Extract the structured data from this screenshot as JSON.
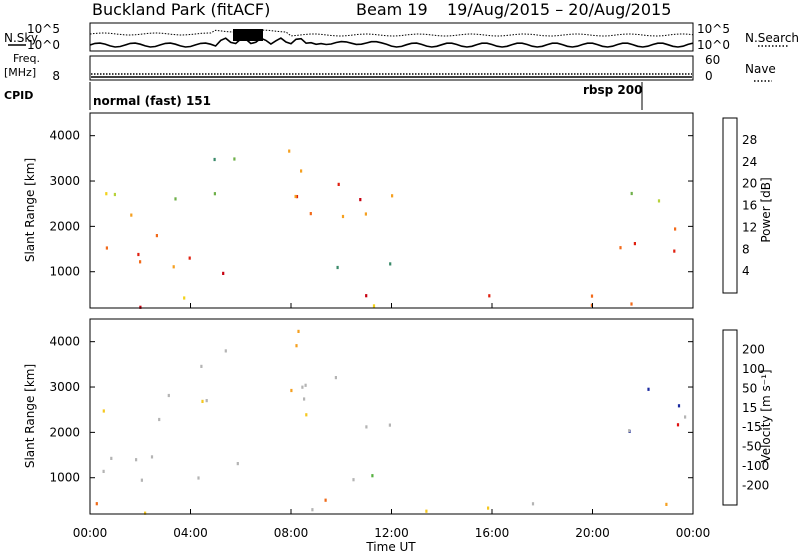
{
  "header": {
    "title": "Buckland Park (fitACF)",
    "beam": "Beam 19",
    "date_range": "19/Aug/2015 – 20/Aug/2015"
  },
  "labels": {
    "n_sky": "N.Sky",
    "n_search": "N.Search",
    "freq": "Freq.",
    "freq_unit": "[MHz]",
    "nave": "Nave",
    "cpid": "CPID",
    "range_ylabel": "Slant Range [km]",
    "time_xlabel": "Time UT",
    "power_label": "Power [dB]",
    "velocity_label": "Velocity [m s⁻¹]"
  },
  "cpid_segments": [
    {
      "label": "normal (fast) 151",
      "start_hr": 0
    },
    {
      "label": "rbsp 200",
      "start_hr": 22
    }
  ],
  "chart_data": [
    {
      "type": "line",
      "title": "N.Sky / N.Search noise",
      "y_left_ticks": [
        "10^5",
        "10^0"
      ],
      "y_right_ticks": [
        "10^5",
        "10^0"
      ],
      "series": [
        {
          "name": "N.Sky",
          "style": "solid"
        },
        {
          "name": "N.Search",
          "style": "dotted"
        }
      ],
      "x": [
        0,
        2,
        4,
        6,
        7,
        8,
        10,
        12,
        16,
        20,
        22,
        24
      ]
    },
    {
      "type": "line",
      "title": "Freq / Nave",
      "y_left_ticks": [
        "8"
      ],
      "y_right_ticks": [
        "60",
        "0"
      ],
      "freq_value": 8
    },
    {
      "type": "heatmap",
      "name": "power",
      "xlabel": "Time UT",
      "ylabel": "Slant Range [km]",
      "xlim": [
        0,
        24
      ],
      "ylim": [
        200,
        4500
      ],
      "x_ticks": [
        "00:00",
        "04:00",
        "08:00",
        "12:00",
        "16:00",
        "20:00",
        "00:00"
      ],
      "y_ticks": [
        1000,
        2000,
        3000,
        4000
      ],
      "colorbar": {
        "label": "Power [dB]",
        "ticks": [
          4,
          8,
          12,
          16,
          20,
          24,
          28
        ],
        "colors": [
          "#0022ee",
          "#2255aa",
          "#3a8a6a",
          "#6fb04a",
          "#b7d23a",
          "#f2d21a",
          "#f5a020",
          "#f26a1a",
          "#e02010",
          "#c80010"
        ]
      }
    },
    {
      "type": "heatmap",
      "name": "velocity",
      "xlabel": "Time UT",
      "ylabel": "Slant Range [km]",
      "xlim": [
        0,
        24
      ],
      "ylim": [
        200,
        4500
      ],
      "x_ticks": [
        "00:00",
        "04:00",
        "08:00",
        "12:00",
        "16:00",
        "20:00",
        "00:00"
      ],
      "y_ticks": [
        1000,
        2000,
        3000,
        4000
      ],
      "colorbar": {
        "label": "Velocity [m s⁻¹]",
        "ticks": [
          200,
          100,
          50,
          15,
          -15,
          -50,
          -100,
          -200
        ],
        "colors": [
          "#1a2aa0",
          "#2e50b8",
          "#3a7a6a",
          "#55b040",
          "#b4b4b4",
          "#b4b4b4",
          "#f5c820",
          "#f5a020",
          "#ef6a18",
          "#e01010"
        ]
      }
    }
  ]
}
